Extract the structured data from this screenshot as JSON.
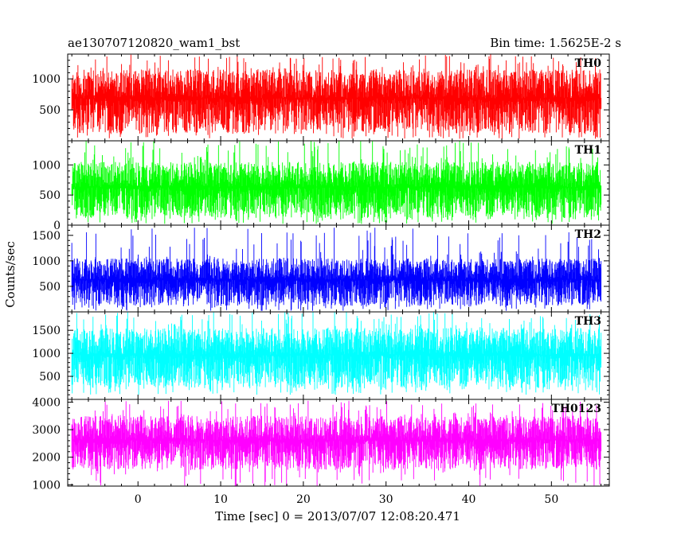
{
  "header": {
    "title": "ae130707120820_wam1_bst",
    "bin_time": "Bin time: 1.5625E-2 s"
  },
  "chart_data": {
    "type": "line",
    "xlabel": "Time [sec] 0 = 2013/07/07 12:08:20.471",
    "ylabel": "Counts/sec",
    "xlim": [
      -8.5,
      57
    ],
    "x_range": [
      -8.0,
      56.0
    ],
    "xticks": [
      0,
      10,
      20,
      30,
      40,
      50
    ],
    "panels": [
      {
        "name": "TH0",
        "color": "#ff0000",
        "ylim": [
          0,
          1400
        ],
        "yticks": [
          500,
          1000
        ],
        "y_typical": [
          120,
          1150
        ],
        "y_max": 1400,
        "y_min": 30
      },
      {
        "name": "TH1",
        "color": "#00ff00",
        "ylim": [
          0,
          1400
        ],
        "yticks": [
          0,
          500,
          1000
        ],
        "y_typical": [
          120,
          1050
        ],
        "y_max": 1400,
        "y_min": 20
      },
      {
        "name": "TH2",
        "color": "#0000ff",
        "ylim": [
          0,
          1700
        ],
        "yticks": [
          500,
          1000,
          1500
        ],
        "y_typical": [
          120,
          1050
        ],
        "y_max": 1650,
        "y_min": 20
      },
      {
        "name": "TH3",
        "color": "#00ffff",
        "ylim": [
          0,
          1900
        ],
        "yticks": [
          500,
          1000,
          1500
        ],
        "y_typical": [
          250,
          1550
        ],
        "y_max": 1900,
        "y_min": 100
      },
      {
        "name": "TH0123",
        "color": "#ff00ff",
        "ylim": [
          950,
          4100
        ],
        "yticks": [
          1000,
          2000,
          3000,
          4000
        ],
        "y_typical": [
          1550,
          3500
        ],
        "y_max": 4050,
        "y_min": 950
      }
    ]
  }
}
